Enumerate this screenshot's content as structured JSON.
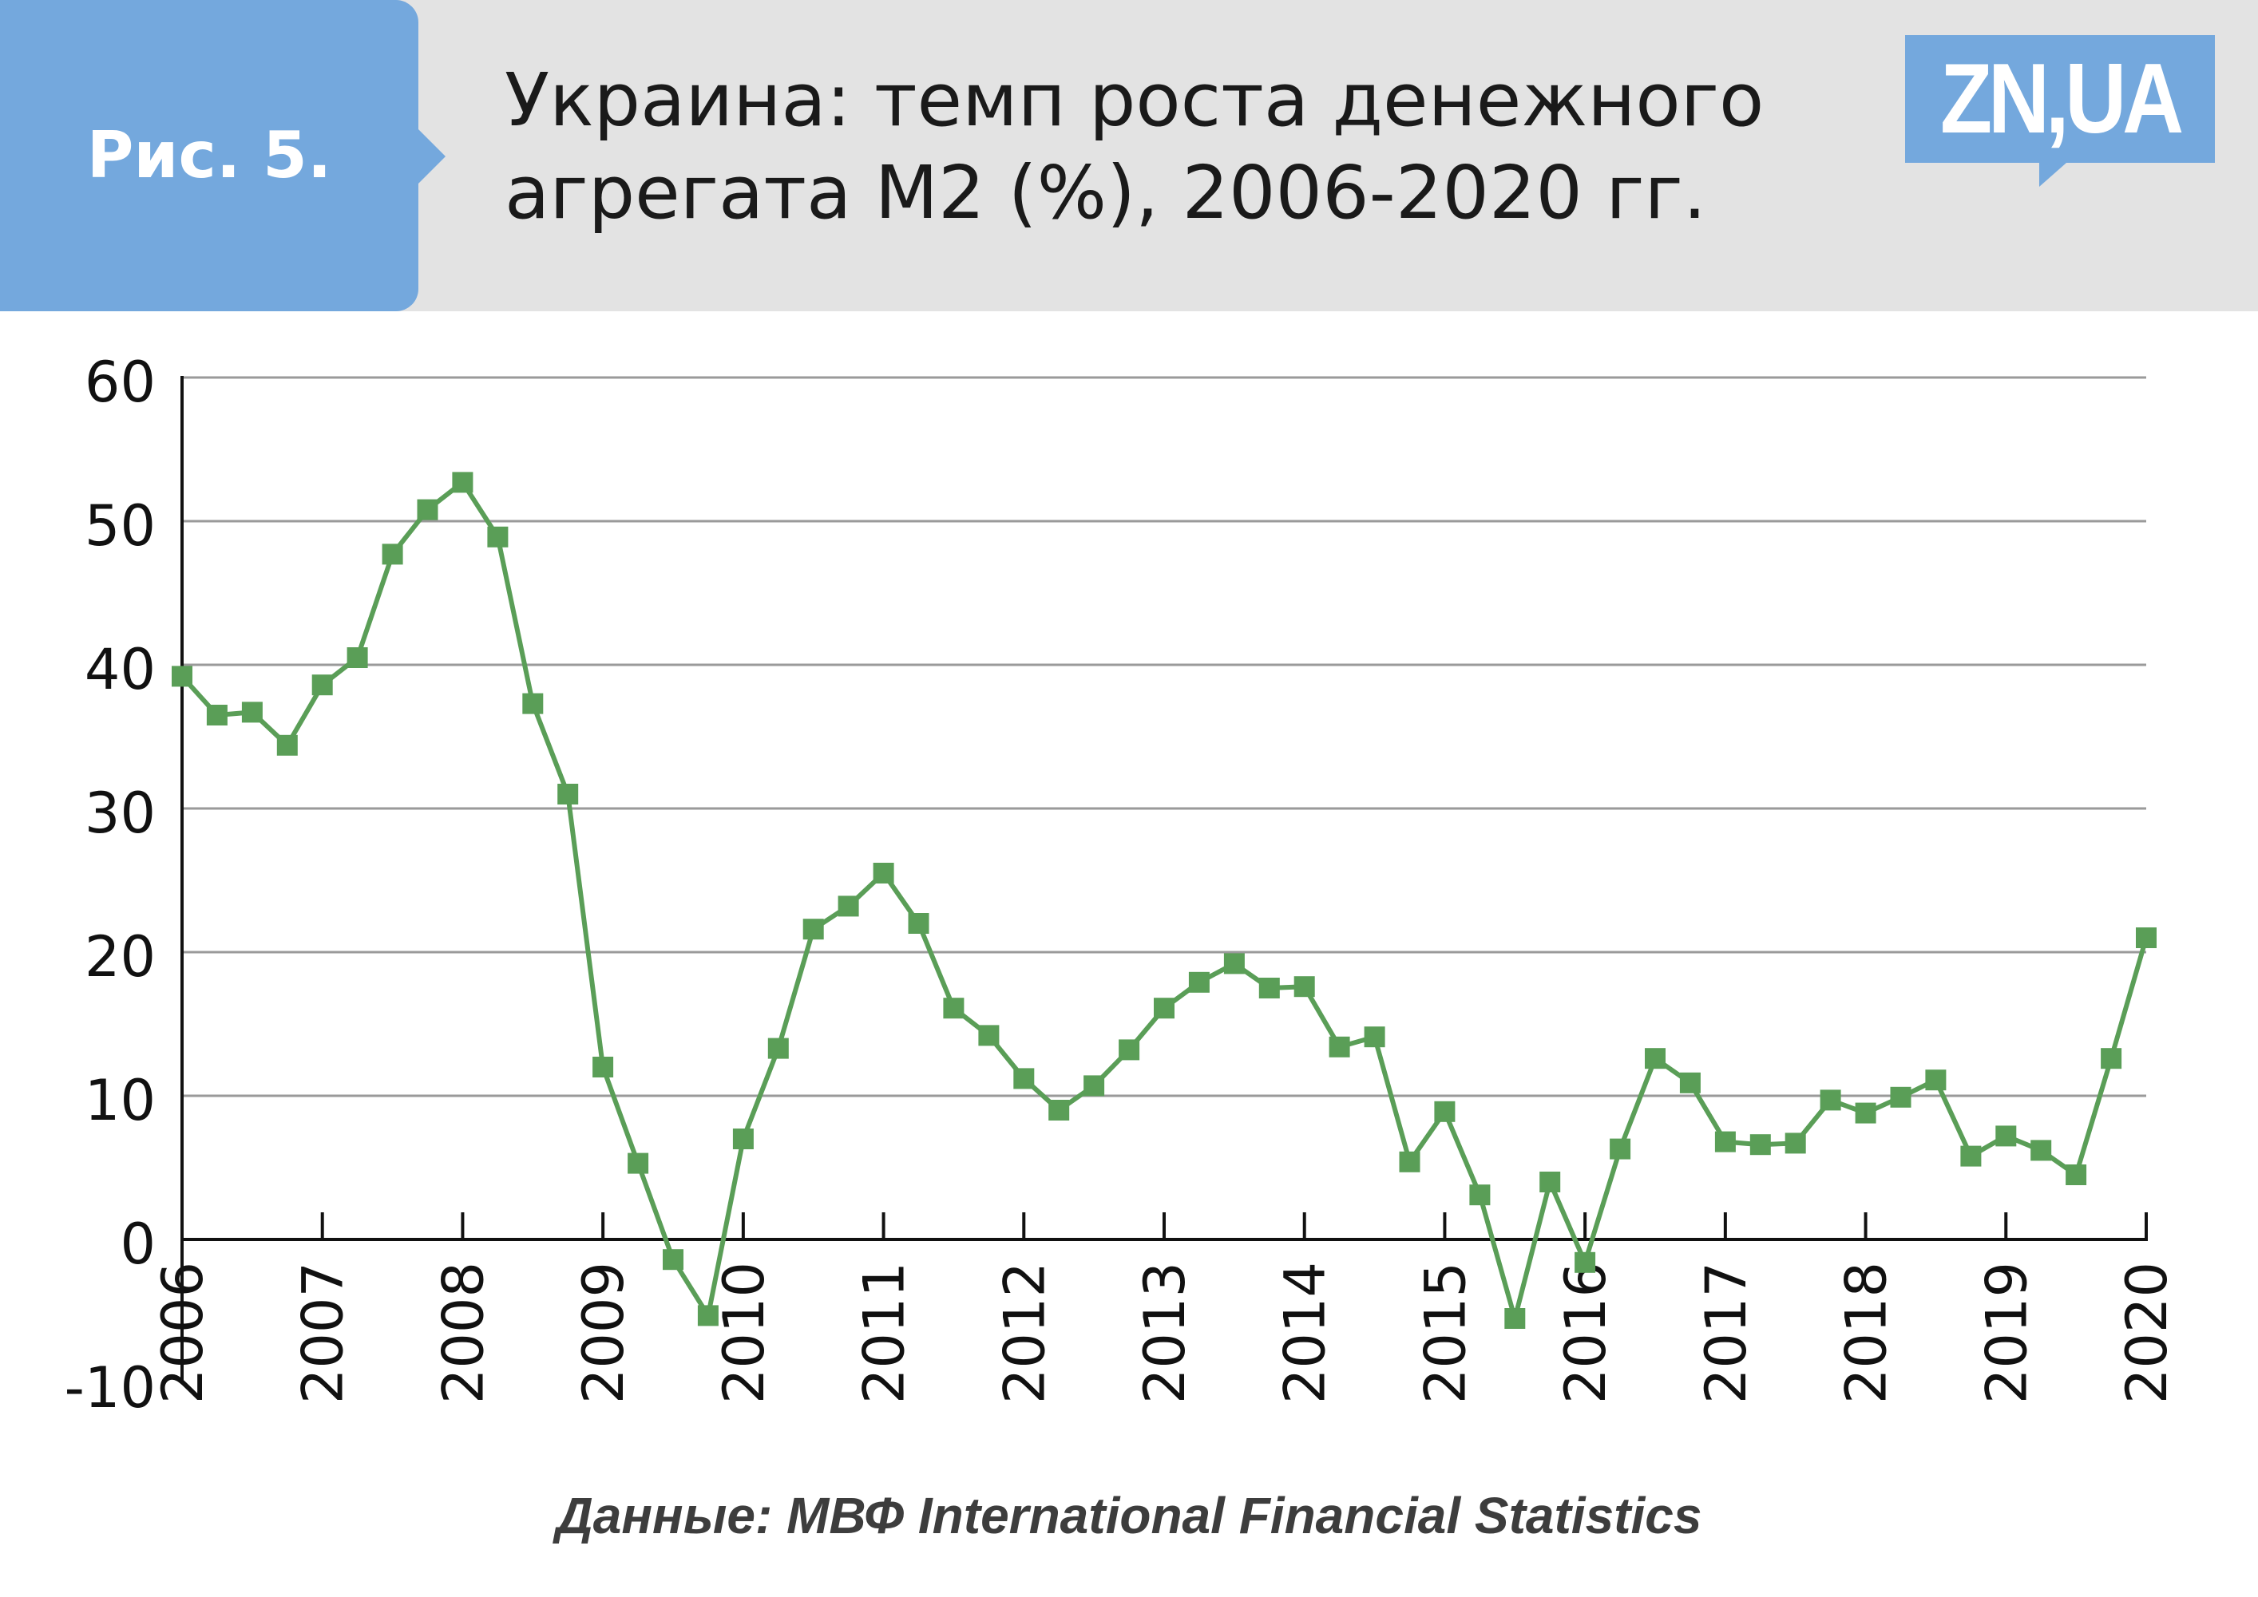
{
  "header": {
    "figure_label": "Рис. 5.",
    "title_line1": "Украина: темп роста денежного",
    "title_line2": "агрегата М2 (%), 2006-2020 гг.",
    "logo": "ZN,UA"
  },
  "source": "Данные: МВФ International Financial Statistics",
  "colors": {
    "series": "#5a9e57",
    "header_bg": "#e3e3e3",
    "tag_bg": "#74a8dd",
    "grid": "#9a9a9a"
  },
  "chart_data": {
    "type": "line",
    "title": "Украина: темп роста денежного агрегата М2 (%), 2006-2020 гг.",
    "xlabel": "",
    "ylabel": "",
    "ylim": [
      -10,
      60
    ],
    "yticks": [
      60,
      50,
      40,
      30,
      20,
      10,
      0,
      -10
    ],
    "xlim": [
      2006,
      2020
    ],
    "xticks": [
      "2006",
      "2007",
      "2008",
      "2009",
      "2010",
      "2011",
      "2012",
      "2013",
      "2014",
      "2015",
      "2016",
      "2017",
      "2018",
      "2019",
      "2020"
    ],
    "grid": true,
    "legend": "none",
    "marker": "square",
    "series": [
      {
        "x": [
          2006.0,
          2006.25,
          2006.5,
          2006.75,
          2007.0,
          2007.25,
          2007.5,
          2007.75,
          2008.0,
          2008.25,
          2008.5,
          2008.75,
          2009.0,
          2009.25,
          2009.5,
          2009.75,
          2010.0,
          2010.25,
          2010.5,
          2010.75,
          2011.0,
          2011.25,
          2011.5,
          2011.75,
          2012.0,
          2012.25,
          2012.5,
          2012.75,
          2013.0,
          2013.25,
          2013.5,
          2013.75,
          2014.0,
          2014.25,
          2014.5,
          2014.75,
          2015.0,
          2015.25,
          2015.5,
          2015.75,
          2016.0,
          2016.25,
          2016.5,
          2016.75,
          2017.0,
          2017.25,
          2017.5,
          2017.75,
          2018.0,
          2018.25,
          2018.5,
          2018.75,
          2019.0,
          2019.25,
          2019.5,
          2019.75,
          2020.0
        ],
        "values": [
          39.2,
          36.5,
          36.7,
          34.4,
          38.6,
          40.5,
          47.7,
          50.8,
          52.7,
          48.9,
          37.3,
          31.0,
          12.0,
          5.3,
          -1.4,
          -5.3,
          7.0,
          13.3,
          21.6,
          23.2,
          25.5,
          22.0,
          16.1,
          14.2,
          11.2,
          9.0,
          10.7,
          13.2,
          16.1,
          17.9,
          19.2,
          17.5,
          17.6,
          13.4,
          14.1,
          5.4,
          8.9,
          3.1,
          -5.5,
          4.0,
          -1.6,
          6.3,
          12.6,
          10.9,
          6.8,
          6.6,
          6.7,
          9.7,
          8.8,
          9.9,
          11.1,
          5.8,
          7.2,
          6.2,
          4.5,
          12.6,
          21.0
        ]
      }
    ]
  }
}
